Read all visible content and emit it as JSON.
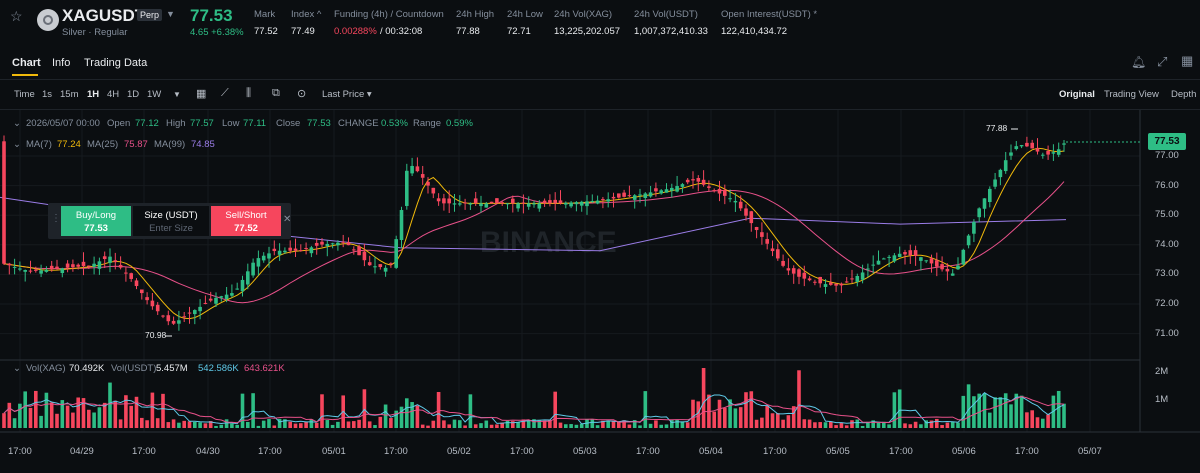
{
  "header": {
    "symbol": "XAGUSDT",
    "perp_badge": "Perp",
    "subtitle": "Silver · Regular",
    "last_price": "77.53",
    "change": "4.65 +6.38%",
    "stats": [
      {
        "label": "Mark",
        "value": "77.52"
      },
      {
        "label": "Index ^",
        "value": "77.49"
      },
      {
        "label": "Funding (4h) / Countdown",
        "value": "0.00288%",
        "value2": "/ 00:32:08"
      },
      {
        "label": "24h High",
        "value": "77.88"
      },
      {
        "label": "24h Low",
        "value": "72.71"
      },
      {
        "label": "24h Vol(XAG)",
        "value": "13,225,202.057"
      },
      {
        "label": "24h Vol(USDT)",
        "value": "1,007,372,410.33"
      },
      {
        "label": "Open Interest(USDT) *",
        "value": "122,410,434.72"
      }
    ]
  },
  "tabs": [
    "Chart",
    "Info",
    "Trading Data"
  ],
  "toolbar": {
    "intervals": [
      "Time",
      "1s",
      "15m",
      "1H",
      "4H",
      "1D",
      "1W"
    ],
    "selected_interval": "1H",
    "price_type": "Last Price",
    "views": [
      "Original",
      "Trading View",
      "Depth"
    ],
    "selected_view": "Original"
  },
  "ohlc": {
    "date": "2026/05/07 00:00",
    "open_label": "Open",
    "open": "77.12",
    "high_label": "High",
    "high": "77.57",
    "low_label": "Low",
    "low": "77.11",
    "close_label": "Close",
    "close": "77.53",
    "change_label": "CHANGE",
    "change": "0.53%",
    "range_label": "Range",
    "range": "0.59%"
  },
  "ma": {
    "ma7_label": "MA(7)",
    "ma7": "77.24",
    "ma25_label": "MA(25)",
    "ma25": "75.87",
    "ma99_label": "MA(99)",
    "ma99": "74.85",
    "colors": {
      "ma7": "#f0b90b",
      "ma25": "#e8518a",
      "ma99": "#9b7de8"
    }
  },
  "order": {
    "buy_label": "Buy/Long",
    "buy_price": "77.53",
    "size_label": "Size (USDT)",
    "size_placeholder": "Enter Size",
    "sell_label": "Sell/Short",
    "sell_price": "77.52"
  },
  "chart": {
    "current_price": "77.53",
    "high_marker": "77.88",
    "low_marker": "70.98",
    "price_ticks": [
      "77.00",
      "76.00",
      "75.00",
      "74.00",
      "73.00",
      "72.00",
      "71.00"
    ],
    "watermark": "BINANCE"
  },
  "volume": {
    "label_xag": "Vol(XAG)",
    "value_xag": "70.492K",
    "label_usdt": "Vol(USDT)",
    "value_usdt": "5.457M",
    "ma1": "542.586K",
    "ma2": "643.621K",
    "ticks": [
      "2M",
      "1M"
    ]
  },
  "time_axis": [
    "17:00",
    "04/29",
    "17:00",
    "04/30",
    "17:00",
    "05/01",
    "17:00",
    "05/02",
    "17:00",
    "05/03",
    "17:00",
    "05/04",
    "17:00",
    "05/05",
    "17:00",
    "05/06",
    "17:00",
    "05/07"
  ],
  "colors": {
    "up": "#2ebd85",
    "down": "#f6465d",
    "accent": "#f0b90b"
  }
}
